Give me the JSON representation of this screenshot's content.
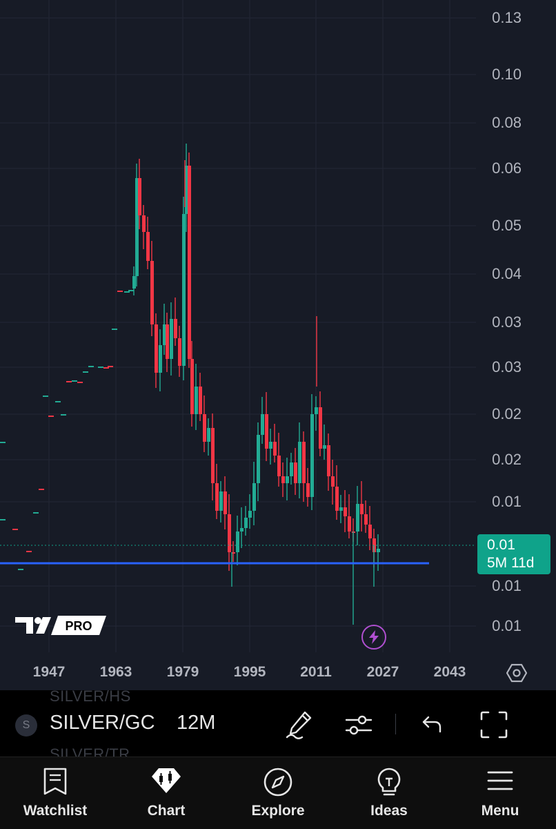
{
  "chart": {
    "price_labels": [
      "0.13",
      "0.10",
      "0.08",
      "0.06",
      "0.05",
      "0.04",
      "0.03",
      "0.03",
      "0.02",
      "0.02",
      "0.01",
      "0.01",
      "0.01"
    ],
    "year_labels": [
      "1947",
      "1963",
      "1979",
      "1995",
      "2011",
      "2027",
      "2043"
    ],
    "last_price": "0.01",
    "countdown": "5M 11d",
    "logo_text": "PRO",
    "colors": {
      "up": "#22ab94",
      "down": "#f23645",
      "support_line": "#2962ff",
      "badge": "#0fa38a"
    }
  },
  "toolbar": {
    "ghost_symbol_above": "SILVER/HS",
    "ghost_symbol_below": "SILVER/TR",
    "symbol_initial": "S",
    "symbol": "SILVER/GC",
    "interval": "12M",
    "icons": [
      "draw-icon",
      "indicators-icon",
      "undo-icon",
      "fullscreen-icon"
    ]
  },
  "nav": {
    "items": [
      {
        "label": "Watchlist",
        "icon": "watchlist-icon"
      },
      {
        "label": "Chart",
        "icon": "chart-icon"
      },
      {
        "label": "Explore",
        "icon": "compass-icon"
      },
      {
        "label": "Ideas",
        "icon": "lightbulb-icon"
      },
      {
        "label": "Menu",
        "icon": "menu-icon"
      }
    ]
  }
}
